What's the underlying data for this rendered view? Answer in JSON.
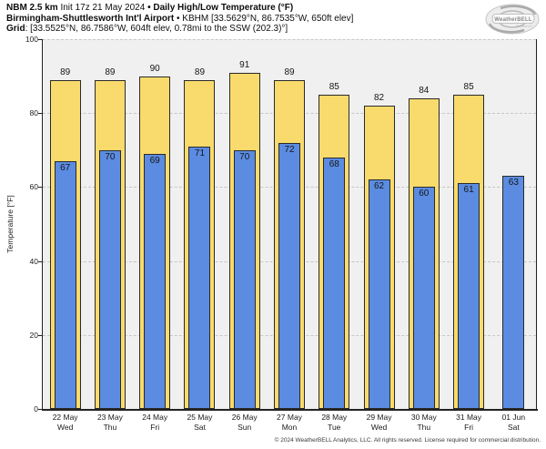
{
  "header": {
    "line1_bold1": "NBM 2.5 km",
    "line1_regular": " Init 17z 21 May 2024 ",
    "line1_bold2": "• Daily High/Low Temperature (°F)",
    "line2_bold": "Birmingham-Shuttlesworth Int'l Airport",
    "line2_regular": " • KBHM [33.5629°N, 86.7535°W, 650ft elev]",
    "line3_bold": "Grid",
    "line3_regular": ": [33.5525°N, 86.7586°W, 604ft elev, 0.78mi to the SSW (202.3)°]"
  },
  "logo": {
    "name": "WeatherBELL",
    "sub": "Analytics LLC"
  },
  "axis": {
    "y_label": "Temperature [°F]",
    "y_ticks": [
      0,
      20,
      40,
      60,
      80,
      100
    ]
  },
  "chart_data": {
    "type": "bar",
    "title": "NBM 2.5 km Init 17z 21 May 2024 • Daily High/Low Temperature (°F)",
    "xlabel": "",
    "ylabel": "Temperature [°F]",
    "ylim": [
      0,
      100
    ],
    "grid": "dashed horizontal",
    "legend": "none",
    "categories": [
      {
        "date": "22 May",
        "day": "Wed"
      },
      {
        "date": "23 May",
        "day": "Thu"
      },
      {
        "date": "24 May",
        "day": "Fri"
      },
      {
        "date": "25 May",
        "day": "Sat"
      },
      {
        "date": "26 May",
        "day": "Sun"
      },
      {
        "date": "27 May",
        "day": "Mon"
      },
      {
        "date": "28 May",
        "day": "Tue"
      },
      {
        "date": "29 May",
        "day": "Wed"
      },
      {
        "date": "30 May",
        "day": "Thu"
      },
      {
        "date": "31 May",
        "day": "Fri"
      },
      {
        "date": "01 Jun",
        "day": "Sat"
      }
    ],
    "series": [
      {
        "name": "High",
        "color": "#F9DB6D",
        "values": [
          89,
          89,
          90,
          89,
          91,
          89,
          85,
          82,
          84,
          85,
          null
        ]
      },
      {
        "name": "Low",
        "color": "#5B8CE2",
        "values": [
          67,
          70,
          69,
          71,
          70,
          72,
          68,
          62,
          60,
          61,
          63
        ]
      }
    ]
  },
  "colors": {
    "high_bar": "#F9DB6D",
    "low_bar": "#5B8CE2",
    "bar_border": "#2a2a2a",
    "plot_background": "#f0f0f0",
    "gridline": "#c7c7c7"
  },
  "footer": {
    "copyright": "© 2024 WeatherBELL Analytics, LLC. All rights reserved. License required for commercial distribution."
  }
}
